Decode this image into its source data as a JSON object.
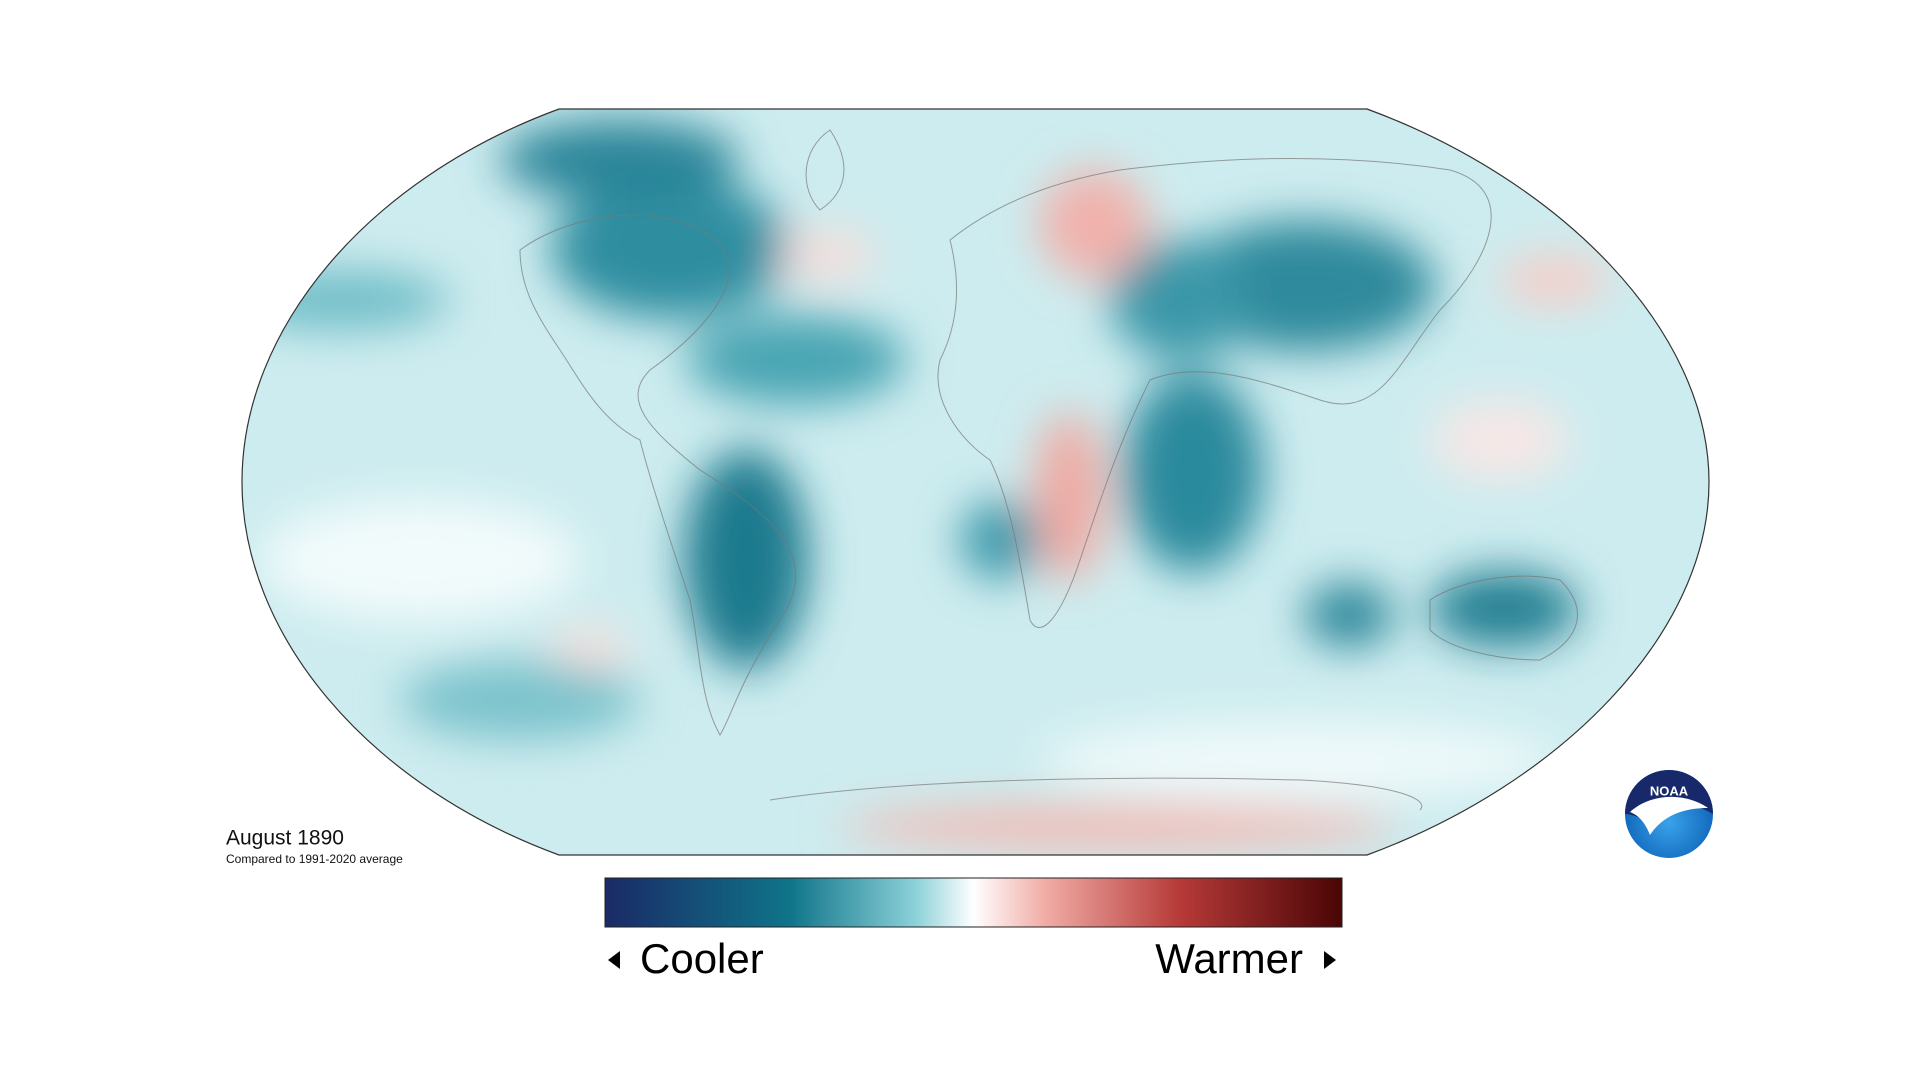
{
  "map": {
    "title": "August 1890",
    "subtitle": "Compared to 1991-2020 average"
  },
  "legend": {
    "low_label": "Cooler",
    "high_label": "Warmer"
  },
  "logo": {
    "text": "NOAA"
  }
}
